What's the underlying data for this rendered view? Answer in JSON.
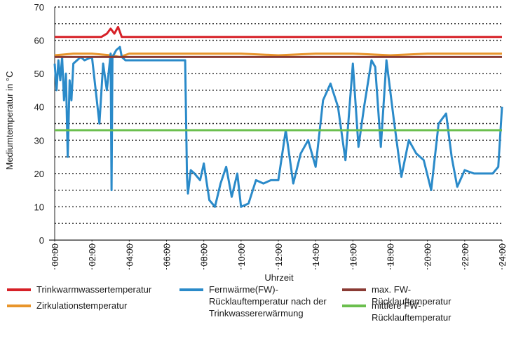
{
  "chart_data": {
    "type": "line",
    "ylabel": "Mediumtemperatur in °C",
    "xlabel": "Uhrzeit",
    "ylim": [
      0,
      70
    ],
    "xlim": [
      0,
      24
    ],
    "y_ticks": [
      "0",
      "10",
      "20",
      "30",
      "40",
      "50",
      "60",
      "70"
    ],
    "x_ticks": [
      "00:00",
      "02:00",
      "04:00",
      "06:00",
      "08:00",
      "10:00",
      "12:00",
      "14:00",
      "16:00",
      "18:00",
      "20:00",
      "22:00",
      "24:00"
    ],
    "grid": "horizontal dotted",
    "legend_placement": "bottom",
    "series": [
      {
        "name": "Trinkwarmwassertemperatur",
        "color": "#d62027",
        "x": [
          0,
          0.5,
          1,
          1.5,
          2,
          2.5,
          2.8,
          3.0,
          3.2,
          3.4,
          3.6,
          3.8,
          4,
          6,
          8,
          10,
          12,
          14,
          16,
          18,
          20,
          22,
          24
        ],
        "y": [
          61,
          61,
          61,
          61,
          61,
          61,
          62,
          63.5,
          62,
          64,
          61,
          61,
          61,
          61,
          61,
          61,
          61,
          61,
          61,
          61,
          61,
          61,
          61
        ]
      },
      {
        "name": "Zirkulationstemperatur",
        "color": "#e8952b",
        "x": [
          0,
          1,
          2,
          3,
          3.5,
          4,
          6,
          8,
          10,
          12,
          14,
          16,
          18,
          20,
          22,
          24
        ],
        "y": [
          55.5,
          56,
          56,
          55.5,
          55,
          56,
          56,
          56,
          56,
          55.5,
          56,
          56,
          55.5,
          56,
          56,
          56
        ]
      },
      {
        "name": "Fernwärme(FW)-Rücklauftemperatur nach der Trinkwassererwärmung",
        "color": "#2a8ac9",
        "x": [
          0,
          0.1,
          0.2,
          0.3,
          0.4,
          0.5,
          0.6,
          0.7,
          0.8,
          0.9,
          1.0,
          1.2,
          1.4,
          1.6,
          2.0,
          2.4,
          2.6,
          2.8,
          3.0,
          3.05,
          3.1,
          3.3,
          3.5,
          3.6,
          3.8,
          4.0,
          5.0,
          6.0,
          7.0,
          7.1,
          7.15,
          7.3,
          7.5,
          7.8,
          8.0,
          8.3,
          8.6,
          8.9,
          9.2,
          9.5,
          9.8,
          10.0,
          10.4,
          10.8,
          11.2,
          11.6,
          12.0,
          12.4,
          12.8,
          13.2,
          13.6,
          14.0,
          14.4,
          14.8,
          15.2,
          15.6,
          16.0,
          16.3,
          16.6,
          17.0,
          17.2,
          17.5,
          17.8,
          18.2,
          18.6,
          19.0,
          19.4,
          19.8,
          20.2,
          20.6,
          21.0,
          21.3,
          21.6,
          22.0,
          22.5,
          23.0,
          23.5,
          23.8,
          24.0
        ],
        "y": [
          53,
          45,
          54,
          48,
          55,
          42,
          50,
          25,
          48,
          42,
          53,
          54,
          55,
          54,
          55,
          35,
          53,
          45,
          56,
          15,
          55,
          57,
          58,
          55,
          54,
          54,
          54,
          54,
          54,
          19,
          14,
          21,
          20,
          18,
          23,
          12,
          10,
          17,
          22,
          13,
          20,
          10,
          11,
          18,
          17,
          18,
          18,
          33,
          17,
          26,
          30,
          22,
          42,
          47,
          40,
          24,
          53,
          28,
          40,
          54,
          52,
          28,
          54,
          36,
          19,
          30,
          26,
          24,
          15,
          35,
          38,
          25,
          16,
          21,
          20,
          20,
          20,
          22,
          40
        ]
      },
      {
        "name": "max. FW-Rücklauftemperatur",
        "color": "#8a3b34",
        "x": [
          0,
          24
        ],
        "y": [
          55,
          55
        ]
      },
      {
        "name": "mittlere FW-Rücklauftemperatur",
        "color": "#6bbf4e",
        "x": [
          0,
          24
        ],
        "y": [
          33,
          33
        ]
      }
    ]
  }
}
